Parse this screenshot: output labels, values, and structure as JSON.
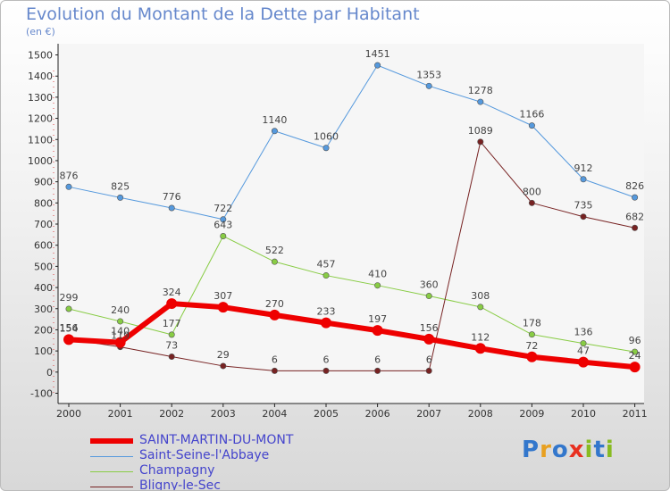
{
  "title": "Evolution du Montant de la Dette par Habitant",
  "unit": "(en €)",
  "logo": {
    "text": "Proxiti",
    "colors": [
      "#3377cc",
      "#e8a020",
      "#3377cc",
      "#e83020",
      "#88bb22",
      "#3377cc",
      "#88bb22"
    ]
  },
  "chart_data": {
    "type": "line",
    "categories": [
      "2000",
      "2001",
      "2002",
      "2003",
      "2004",
      "2005",
      "2006",
      "2007",
      "2008",
      "2009",
      "2010",
      "2011"
    ],
    "ylim": [
      -100,
      1500
    ],
    "yticks": [
      "-100",
      "0",
      "100",
      "200",
      "300",
      "400",
      "500",
      "600",
      "700",
      "800",
      "900",
      "1000",
      "1100",
      "1200",
      "1300",
      "1400",
      "1500"
    ],
    "grid": false,
    "legend_position": "bottom-left",
    "series": [
      {
        "name": "Saint-Seine-l'Abbaye",
        "color": "#5599dd",
        "width": 1,
        "values": [
          876,
          825,
          776,
          722,
          1140,
          1060,
          1451,
          1353,
          1278,
          1166,
          912,
          826
        ],
        "labels": [
          "876",
          "825",
          "776",
          "722",
          "1140",
          "1060",
          "1451",
          "1353",
          "1278",
          "1166",
          "912",
          "826"
        ]
      },
      {
        "name": "Champagny",
        "color": "#88cc44",
        "width": 1,
        "values": [
          299,
          240,
          177,
          643,
          522,
          457,
          410,
          360,
          308,
          178,
          136,
          96
        ],
        "labels": [
          "299",
          "240",
          "177",
          "643",
          "522",
          "457",
          "410",
          "360",
          "308",
          "178",
          "136",
          "96"
        ]
      },
      {
        "name": "Bligny-le-Sec",
        "color": "#772222",
        "width": 1,
        "values": [
          156,
          119,
          73,
          29,
          6,
          6,
          6,
          6,
          1089,
          800,
          735,
          682
        ],
        "labels": [
          "156",
          "119",
          "73",
          "29",
          "6",
          "6",
          "6",
          "6",
          "1089",
          "800",
          "735",
          "682"
        ]
      },
      {
        "name": "SAINT-MARTIN-DU-MONT",
        "color": "#ee0000",
        "width": 6,
        "values": [
          154,
          140,
          324,
          307,
          270,
          233,
          197,
          156,
          112,
          72,
          47,
          24
        ],
        "labels": [
          "154",
          "140",
          "324",
          "307",
          "270",
          "233",
          "197",
          "156",
          "112",
          "72",
          "47",
          "24"
        ]
      }
    ]
  },
  "legend_items": [
    {
      "name": "SAINT-MARTIN-DU-MONT",
      "color": "#ee0000",
      "width": 6
    },
    {
      "name": "Saint-Seine-l'Abbaye",
      "color": "#5599dd",
      "width": 1
    },
    {
      "name": "Champagny",
      "color": "#88cc44",
      "width": 1
    },
    {
      "name": "Bligny-le-Sec",
      "color": "#772222",
      "width": 1
    }
  ]
}
